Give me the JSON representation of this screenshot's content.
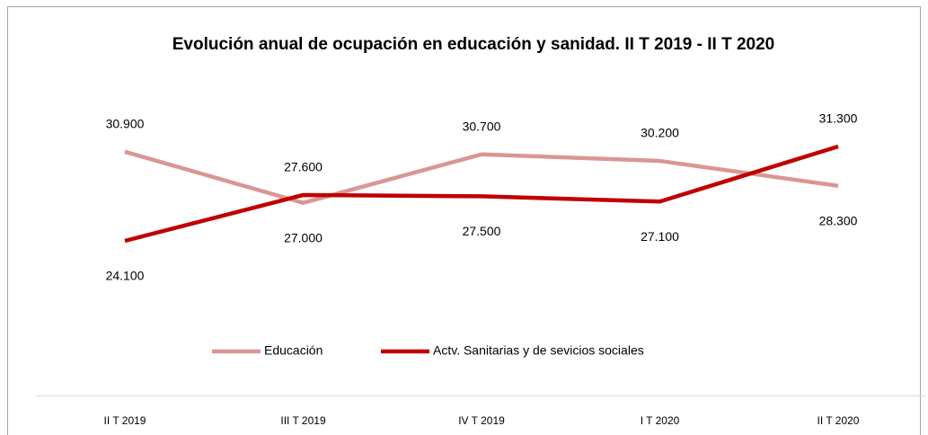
{
  "chart_data": {
    "type": "line",
    "title": "Evolución anual de ocupación en educación y sanidad. II T 2019 - II T 2020",
    "categories": [
      "II T 2019",
      "III T 2019",
      "IV T 2019",
      "I T 2020",
      "II T 2020"
    ],
    "series": [
      {
        "name": "Educación",
        "color": "#d99694",
        "values": [
          30900,
          27000,
          30700,
          30200,
          28300
        ],
        "value_labels": [
          "30.900",
          "27.000",
          "30.700",
          "30.200",
          "28.300"
        ]
      },
      {
        "name": "Actv. Sanitarias y de sevicios sociales",
        "color": "#c00000",
        "values": [
          24100,
          27600,
          27500,
          27100,
          31300
        ],
        "value_labels": [
          "24.100",
          "27.600",
          "27.500",
          "27.100",
          "31.300"
        ]
      }
    ],
    "legend": "bottom"
  }
}
